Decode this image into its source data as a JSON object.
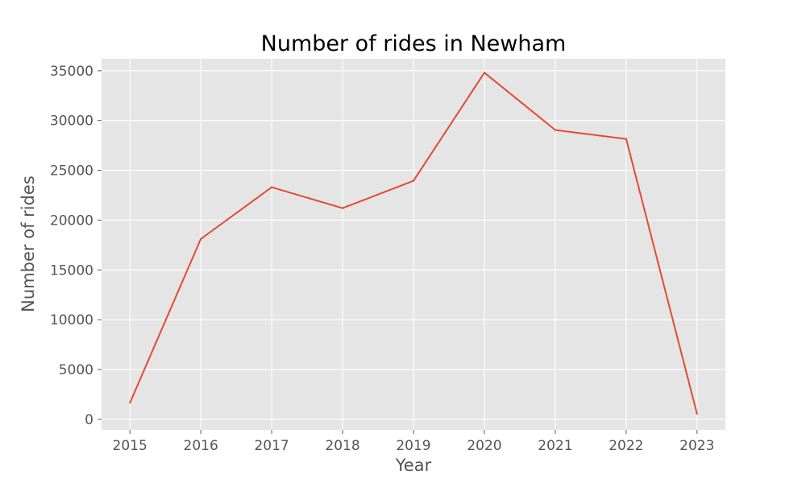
{
  "chart_data": {
    "type": "line",
    "title": "Number of rides in Newham",
    "xlabel": "Year",
    "ylabel": "Number of rides",
    "x": [
      2015,
      2016,
      2017,
      2018,
      2019,
      2020,
      2021,
      2022,
      2023
    ],
    "series": [
      {
        "values": [
          1650,
          18100,
          23300,
          21200,
          23950,
          34800,
          29050,
          28150,
          550
        ]
      }
    ],
    "xticks": [
      2015,
      2016,
      2017,
      2018,
      2019,
      2020,
      2021,
      2022,
      2023
    ],
    "yticks": [
      0,
      5000,
      10000,
      15000,
      20000,
      25000,
      30000,
      35000
    ],
    "xlim": [
      2014.6,
      2023.4
    ],
    "ylim": [
      -1060,
      36200
    ],
    "grid": true,
    "colors": {
      "background": "#e5e5e5",
      "grid": "#ffffff",
      "line": "#e24a33"
    }
  }
}
